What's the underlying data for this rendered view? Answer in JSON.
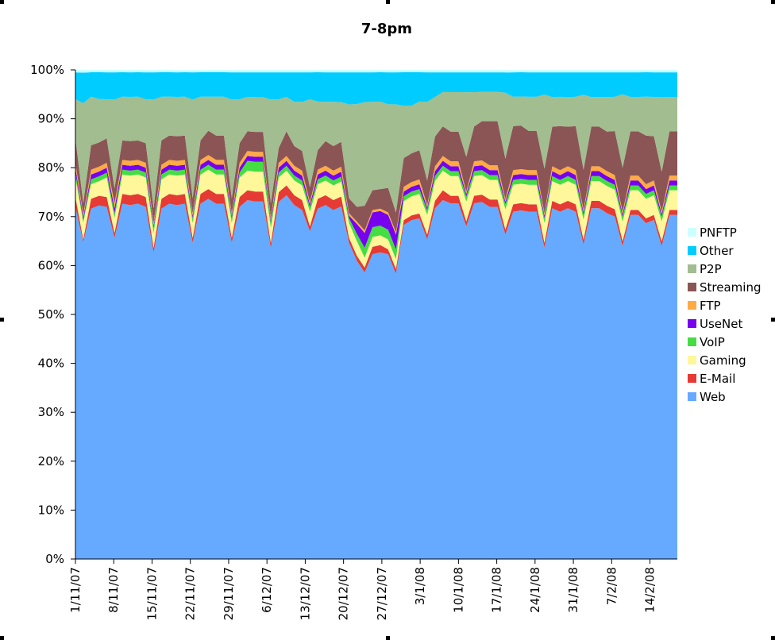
{
  "chart_data": {
    "type": "area",
    "stacked": true,
    "percent": true,
    "title": "7-8pm",
    "xlabel": "",
    "ylabel": "",
    "ylim": [
      0,
      100
    ],
    "yticks": [
      "0%",
      "10%",
      "20%",
      "30%",
      "40%",
      "50%",
      "60%",
      "70%",
      "80%",
      "90%",
      "100%"
    ],
    "xticks": [
      "1/11/07",
      "8/11/07",
      "15/11/07",
      "22/11/07",
      "29/11/07",
      "6/12/07",
      "13/12/07",
      "20/12/07",
      "27/12/07",
      "3/1/08",
      "10/1/08",
      "17/1/08",
      "24/1/08",
      "31/1/08",
      "7/2/08",
      "14/2/08"
    ],
    "x_start": "2007-11-01",
    "x_end": "2008-02-19",
    "grid": false,
    "legend_position": "right",
    "legend": [
      "PNFTP",
      "Other",
      "P2P",
      "Streaming",
      "FTP",
      "UseNet",
      "VoIP",
      "Gaming",
      "E-Mail",
      "Web"
    ],
    "series": [
      {
        "name": "Web",
        "color": "#66aaff",
        "values": [
          72,
          57,
          72,
          73,
          72,
          65,
          73,
          72,
          73,
          72,
          62,
          72,
          73,
          72,
          73,
          64,
          73,
          74,
          73,
          73,
          64,
          72,
          73,
          72,
          72,
          63,
          73,
          74,
          72,
          71,
          67,
          72,
          72,
          71,
          71,
          64,
          61,
          58,
          62,
          63,
          62,
          58,
          70,
          71,
          70,
          65,
          71,
          73,
          72,
          72,
          67,
          72,
          73,
          72,
          72,
          64,
          71,
          72,
          71,
          71,
          63,
          71,
          71,
          71,
          71,
          63,
          71,
          71,
          70,
          70,
          64,
          70,
          70,
          69,
          69,
          63,
          70,
          70
        ]
      },
      {
        "name": "E-Mail",
        "color": "#e63a34",
        "values": [
          2,
          0.5,
          2,
          2,
          2,
          1,
          2,
          2,
          2,
          2,
          1,
          2,
          2,
          2,
          2,
          1,
          2,
          2,
          2,
          2,
          1,
          2,
          2,
          2,
          2,
          1,
          2,
          2,
          2,
          2,
          1,
          2,
          2,
          2,
          2,
          1,
          1,
          1,
          1.5,
          1.5,
          1,
          1,
          1,
          1,
          1,
          1,
          1.5,
          2,
          1.5,
          1.5,
          1,
          1.5,
          1.5,
          1.5,
          1.5,
          1,
          1.5,
          1.5,
          1.5,
          1.5,
          1,
          1.5,
          1.5,
          1.5,
          1.5,
          1,
          1.5,
          1.5,
          1.5,
          1.5,
          1,
          1,
          1,
          1,
          1,
          1,
          1,
          1
        ]
      },
      {
        "name": "Gaming",
        "color": "#fff799",
        "values": [
          4,
          3,
          3,
          3,
          4,
          3,
          4,
          4,
          4,
          4,
          3,
          4,
          4,
          4,
          4,
          3,
          4,
          4,
          4,
          4,
          3,
          4,
          4,
          4,
          4,
          3,
          3,
          3,
          3,
          3,
          3,
          3,
          3,
          3,
          3,
          3,
          3,
          2,
          2,
          2,
          2,
          2,
          4,
          4,
          4,
          4,
          4,
          4,
          4,
          4,
          4,
          4,
          4,
          4,
          4,
          4,
          4,
          4,
          4,
          4,
          4,
          4,
          4,
          4,
          4,
          4,
          4,
          4,
          4,
          4,
          4,
          4,
          4,
          4,
          4,
          4,
          4,
          4
        ]
      },
      {
        "name": "VoIP",
        "color": "#44dd44",
        "values": [
          1,
          0.5,
          1,
          1,
          1,
          1,
          1,
          1,
          1,
          1,
          1,
          1,
          1,
          1,
          1,
          1,
          1,
          1,
          1,
          1,
          1,
          1,
          2,
          2,
          2,
          1,
          1,
          1,
          1,
          1,
          1,
          1,
          1,
          1,
          1,
          1,
          1.5,
          2,
          2,
          2,
          2,
          2,
          1,
          1,
          1,
          1,
          1,
          1,
          1,
          1,
          1,
          1,
          1,
          1,
          1,
          1,
          1,
          1,
          1,
          1,
          1,
          1,
          1,
          1,
          1,
          1,
          1,
          1,
          1,
          1,
          1,
          1,
          1,
          1,
          1,
          1,
          1,
          1
        ]
      },
      {
        "name": "UseNet",
        "color": "#7700ee",
        "values": [
          1,
          0.5,
          1,
          1,
          1,
          1,
          1,
          1,
          1,
          1,
          0.5,
          1,
          1,
          1,
          1,
          0.5,
          1,
          1,
          1,
          1,
          0.5,
          1,
          1,
          1,
          1,
          0.5,
          1,
          1,
          1,
          1,
          0.5,
          1,
          1,
          1,
          1,
          0.5,
          2,
          3,
          3,
          3,
          3,
          3,
          1,
          1,
          1,
          0.5,
          1,
          1,
          1,
          1,
          0.5,
          1,
          1,
          1,
          1,
          0.5,
          1,
          1,
          1,
          1,
          0.5,
          1,
          1,
          1,
          1,
          0.5,
          1,
          1,
          1,
          1,
          0.5,
          1,
          1,
          1,
          1,
          0.5,
          1,
          1
        ]
      },
      {
        "name": "FTP",
        "color": "#ffaa44",
        "values": [
          1,
          0.5,
          1,
          1,
          1,
          1,
          1,
          1,
          1,
          1,
          0.5,
          1,
          1,
          1,
          1,
          0.5,
          1,
          1,
          1,
          1,
          0.5,
          1,
          1,
          1,
          1,
          0.5,
          1,
          1,
          1,
          1,
          0.5,
          1,
          1,
          1,
          1,
          0.5,
          0.5,
          0.5,
          0.5,
          0.5,
          0.5,
          0.5,
          1,
          1,
          1,
          0.5,
          1,
          1,
          1,
          1,
          0.5,
          1,
          1,
          1,
          1,
          0.5,
          1,
          1,
          1,
          1,
          0.5,
          1,
          1,
          1,
          1,
          0.5,
          1,
          1,
          1,
          1,
          0.5,
          1,
          1,
          1,
          1,
          0.5,
          1,
          1
        ]
      },
      {
        "name": "Streaming",
        "color": "#8b5555",
        "values": [
          5,
          2,
          5,
          5,
          5,
          3,
          4,
          4,
          4,
          4,
          3,
          5,
          5,
          5,
          5,
          3,
          4,
          5,
          5,
          5,
          3,
          4,
          4,
          4,
          4,
          3,
          3,
          5,
          4,
          4,
          3,
          4,
          5,
          5,
          5,
          3,
          3,
          5,
          4,
          4,
          5,
          4,
          6,
          6,
          6,
          5,
          6,
          6,
          6,
          6,
          7,
          7,
          8,
          9,
          9,
          8,
          9,
          9,
          8,
          8,
          9,
          8,
          9,
          8,
          9,
          8,
          8,
          8,
          8,
          9,
          9,
          9,
          9,
          10,
          9,
          8,
          9,
          9
        ]
      },
      {
        "name": "P2P",
        "color": "#a2bd90",
        "values": [
          8,
          18,
          10,
          9,
          8,
          18,
          9,
          9,
          9,
          9,
          22,
          9,
          8,
          8,
          8,
          20,
          9,
          7,
          8,
          8,
          20,
          9,
          7,
          7,
          7,
          21,
          10,
          7,
          9,
          10,
          18,
          10,
          8,
          9,
          8,
          19,
          21,
          21,
          18,
          18,
          17,
          22,
          11,
          10,
          10,
          16,
          8,
          7,
          8,
          8,
          13,
          7,
          6,
          6,
          6,
          13,
          6,
          6,
          7,
          7,
          15,
          6,
          6,
          6,
          6,
          15,
          6,
          6,
          7,
          7,
          15,
          7,
          7,
          8,
          8,
          15,
          7,
          7
        ]
      },
      {
        "name": "Other",
        "color": "#00ccff",
        "values": [
          5.5,
          5.5,
          5,
          5.5,
          5.5,
          5.5,
          5,
          5,
          5,
          5.5,
          5.5,
          5,
          5,
          5,
          5,
          5.5,
          5,
          5,
          5,
          5,
          5.5,
          5.5,
          5,
          5,
          5,
          5.5,
          5.5,
          5,
          6,
          6,
          5.5,
          6,
          6,
          6,
          6,
          6.5,
          6.5,
          6,
          6,
          6,
          6.5,
          6.5,
          7,
          7,
          6,
          6,
          5,
          4,
          4,
          4,
          4,
          4,
          4,
          4,
          4,
          4,
          5,
          5,
          5,
          5,
          4.5,
          5,
          5,
          5,
          5,
          4.5,
          5,
          5,
          5,
          5,
          4.5,
          5,
          5,
          5,
          5,
          5,
          5,
          5
        ]
      },
      {
        "name": "PNFTP",
        "color": "#ccffff",
        "values": [
          0.5,
          0.5,
          0.5,
          0.5,
          0.5,
          0.5,
          0.5,
          0.5,
          0.5,
          0.5,
          0.5,
          0.5,
          0.5,
          0.5,
          0.5,
          0.5,
          0.5,
          0.5,
          0.5,
          0.5,
          0.5,
          0.5,
          0.5,
          0.5,
          0.5,
          0.5,
          0.5,
          0.5,
          0.5,
          0.5,
          0.5,
          0.5,
          0.5,
          0.5,
          0.5,
          0.5,
          0.5,
          0.5,
          0.5,
          0.5,
          0.5,
          0.5,
          0.5,
          0.5,
          0.5,
          0.5,
          0.5,
          0.5,
          0.5,
          0.5,
          0.5,
          0.5,
          0.5,
          0.5,
          0.5,
          0.5,
          0.5,
          0.5,
          0.5,
          0.5,
          0.5,
          0.5,
          0.5,
          0.5,
          0.5,
          0.5,
          0.5,
          0.5,
          0.5,
          0.5,
          0.5,
          0.5,
          0.5,
          0.5,
          0.5,
          0.5,
          0.5,
          0.5
        ]
      }
    ]
  }
}
